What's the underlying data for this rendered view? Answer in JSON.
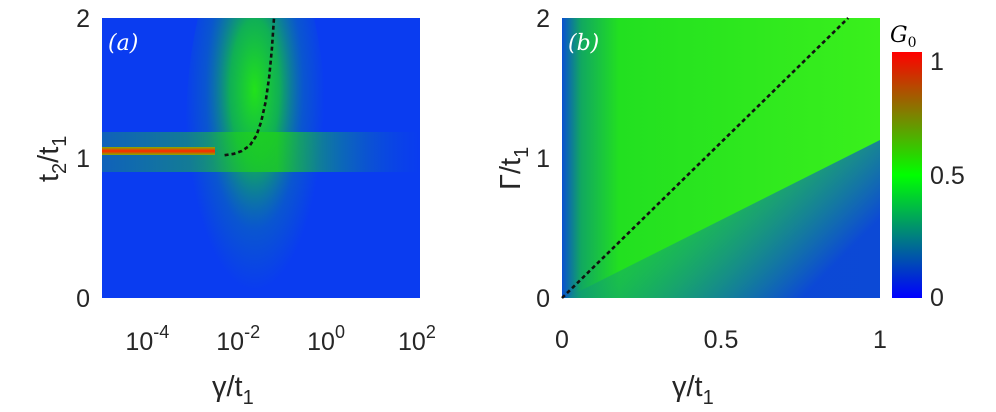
{
  "chart_data": [
    {
      "type": "heatmap",
      "panel_label": "(a)",
      "xlabel": {
        "main": "γ/t",
        "sub": "1"
      },
      "ylabel": {
        "main": "t",
        "sub1": "2",
        "mid": "/t",
        "sub2": "1"
      },
      "x_scale": "log",
      "xlim": [
        1e-05,
        100
      ],
      "ylim": [
        0,
        2
      ],
      "x_ticks": [
        {
          "value": 0.0001,
          "base": "10",
          "exp": "-4"
        },
        {
          "value": 0.01,
          "base": "10",
          "exp": "-2"
        },
        {
          "value": 1,
          "base": "10",
          "exp": "0"
        },
        {
          "value": 100,
          "base": "10",
          "exp": "2"
        }
      ],
      "y_ticks": [
        {
          "value": 0,
          "label": "0"
        },
        {
          "value": 1,
          "label": "1"
        },
        {
          "value": 2,
          "label": "2"
        }
      ],
      "dashed_curve": [
        [
          0.005,
          1.02
        ],
        [
          0.008,
          1.03
        ],
        [
          0.012,
          1.05
        ],
        [
          0.018,
          1.09
        ],
        [
          0.025,
          1.16
        ],
        [
          0.032,
          1.26
        ],
        [
          0.04,
          1.4
        ],
        [
          0.048,
          1.58
        ],
        [
          0.055,
          1.78
        ],
        [
          0.061,
          2.0
        ]
      ]
    },
    {
      "type": "heatmap",
      "panel_label": "(b)",
      "xlabel": {
        "main": "γ/t",
        "sub": "1"
      },
      "ylabel": {
        "main": "Γ/t",
        "sub": "1"
      },
      "xlim": [
        0,
        1
      ],
      "ylim": [
        0,
        2
      ],
      "x_ticks": [
        {
          "value": 0,
          "label": "0"
        },
        {
          "value": 0.5,
          "label": "0.5"
        },
        {
          "value": 1,
          "label": "1"
        }
      ],
      "y_ticks": [
        {
          "value": 0,
          "label": "0"
        },
        {
          "value": 1,
          "label": "1"
        },
        {
          "value": 2,
          "label": "2"
        }
      ],
      "dashed_line": [
        [
          0,
          0
        ],
        [
          0.9,
          2.0
        ]
      ]
    }
  ],
  "colorbar": {
    "title": {
      "main": "G",
      "sub": "0"
    },
    "range": [
      0,
      1
    ],
    "colors": [
      "#0000ff",
      "#00ff00",
      "#ff0000"
    ],
    "ticks": [
      {
        "value": 0,
        "label": "0"
      },
      {
        "value": 0.5,
        "label": "0.5"
      },
      {
        "value": 1,
        "label": "1"
      }
    ]
  }
}
